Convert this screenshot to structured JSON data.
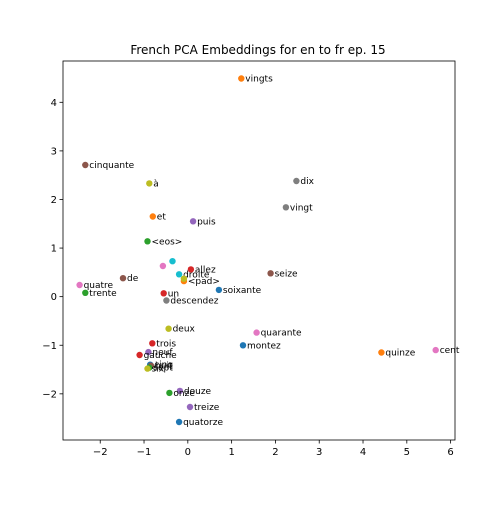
{
  "chart_data": {
    "type": "scatter",
    "title": "French PCA Embeddings for en to fr ep. 15",
    "xlabel": "",
    "ylabel": "",
    "xlim": [
      -2.85,
      6.1
    ],
    "ylim": [
      -2.95,
      4.85
    ],
    "x_ticks": [
      -2,
      -1,
      0,
      1,
      2,
      3,
      4,
      5,
      6
    ],
    "y_ticks": [
      -2,
      -1,
      0,
      1,
      2,
      3,
      4
    ],
    "grid": false,
    "points": [
      {
        "label": "vingts",
        "x": 1.22,
        "y": 4.49,
        "color": "#ff7f0e"
      },
      {
        "label": "cinquante",
        "x": -2.34,
        "y": 2.71,
        "color": "#8c564b"
      },
      {
        "label": "dix",
        "x": 2.48,
        "y": 2.38,
        "color": "#7f7f7f"
      },
      {
        "label": "à",
        "x": -0.88,
        "y": 2.33,
        "color": "#bcbd22"
      },
      {
        "label": "vingt",
        "x": 2.24,
        "y": 1.84,
        "color": "#7f7f7f"
      },
      {
        "label": "et",
        "x": -0.8,
        "y": 1.65,
        "color": "#ff7f0e"
      },
      {
        "label": "puis",
        "x": 0.12,
        "y": 1.55,
        "color": "#9467bd"
      },
      {
        "label": "<eos>",
        "x": -0.92,
        "y": 1.14,
        "color": "#2ca02c"
      },
      {
        "label": "",
        "x": -0.35,
        "y": 0.73,
        "color": "#17becf"
      },
      {
        "label": "",
        "x": -0.57,
        "y": 0.63,
        "color": "#e377c2"
      },
      {
        "label": "allez",
        "x": 0.07,
        "y": 0.56,
        "color": "#d62728"
      },
      {
        "label": "droite",
        "x": -0.2,
        "y": 0.46,
        "color": "#17becf"
      },
      {
        "label": "seize",
        "x": 1.89,
        "y": 0.48,
        "color": "#8c564b"
      },
      {
        "label": "<pad>",
        "x": -0.09,
        "y": 0.32,
        "color": "#ff7f0e"
      },
      {
        "label": "",
        "x": -0.09,
        "y": 0.37,
        "color": "#bcbd22"
      },
      {
        "label": "de",
        "x": -1.48,
        "y": 0.38,
        "color": "#8c564b"
      },
      {
        "label": "quatre",
        "x": -2.47,
        "y": 0.24,
        "color": "#e377c2"
      },
      {
        "label": "trente",
        "x": -2.34,
        "y": 0.08,
        "color": "#2ca02c"
      },
      {
        "label": "soixante",
        "x": 0.71,
        "y": 0.14,
        "color": "#1f77b4"
      },
      {
        "label": "un",
        "x": -0.55,
        "y": 0.07,
        "color": "#d62728"
      },
      {
        "label": "descendez",
        "x": -0.49,
        "y": -0.08,
        "color": "#7f7f7f"
      },
      {
        "label": "deux",
        "x": -0.44,
        "y": -0.66,
        "color": "#bcbd22"
      },
      {
        "label": "quarante",
        "x": 1.57,
        "y": -0.74,
        "color": "#e377c2"
      },
      {
        "label": "montez",
        "x": 1.26,
        "y": -1.0,
        "color": "#1f77b4"
      },
      {
        "label": "cent",
        "x": 5.66,
        "y": -1.1,
        "color": "#e377c2"
      },
      {
        "label": "quinze",
        "x": 4.42,
        "y": -1.15,
        "color": "#ff7f0e"
      },
      {
        "label": "trois",
        "x": -0.81,
        "y": -0.96,
        "color": "#d62728"
      },
      {
        "label": "neuf",
        "x": -0.9,
        "y": -1.14,
        "color": "#9467bd"
      },
      {
        "label": "gauche",
        "x": -1.1,
        "y": -1.2,
        "color": "#d62728"
      },
      {
        "label": "cinq",
        "x": -0.86,
        "y": -1.4,
        "color": "#1f77b4"
      },
      {
        "label": "huit",
        "x": -0.84,
        "y": -1.42,
        "color": "#8c564b"
      },
      {
        "label": "sept",
        "x": -0.88,
        "y": -1.46,
        "color": "#2ca02c"
      },
      {
        "label": "six",
        "x": -0.92,
        "y": -1.48,
        "color": "#bcbd22"
      },
      {
        "label": "douze",
        "x": -0.18,
        "y": -1.94,
        "color": "#9467bd"
      },
      {
        "label": "onze",
        "x": -0.42,
        "y": -1.98,
        "color": "#2ca02c"
      },
      {
        "label": "treize",
        "x": 0.05,
        "y": -2.27,
        "color": "#9467bd"
      },
      {
        "label": "quatorze",
        "x": -0.2,
        "y": -2.58,
        "color": "#1f77b4"
      }
    ]
  }
}
